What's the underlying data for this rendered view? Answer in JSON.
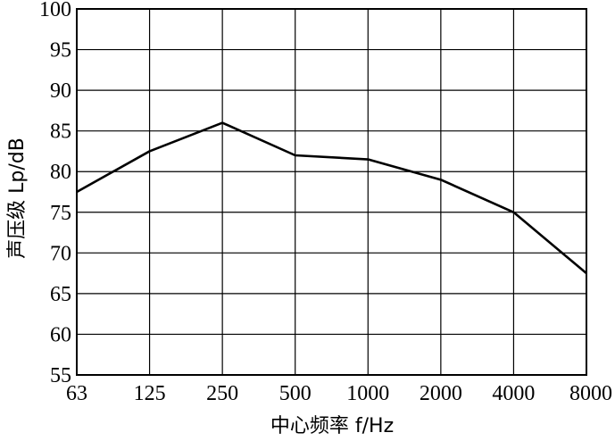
{
  "chart_data": {
    "type": "line",
    "xlabel": "中心频率 f/Hz",
    "ylabel": "声压级 Lp/dB",
    "x_categories": [
      "63",
      "125",
      "250",
      "500",
      "1000",
      "2000",
      "4000",
      "8000"
    ],
    "y_ticks": [
      "55",
      "60",
      "65",
      "70",
      "75",
      "80",
      "85",
      "90",
      "95",
      "100"
    ],
    "ylim": [
      55,
      100
    ],
    "grid": true,
    "series": [
      {
        "points": [
          {
            "x": "63",
            "y": 77.5
          },
          {
            "x": "125",
            "y": 82.5
          },
          {
            "x": "250",
            "y": 86.0
          },
          {
            "x": "500",
            "y": 82.0
          },
          {
            "x": "1000",
            "y": 81.5
          },
          {
            "x": "2000",
            "y": 79.0
          },
          {
            "x": "4000",
            "y": 75.0
          },
          {
            "x": "8000",
            "y": 67.5
          }
        ]
      }
    ]
  }
}
